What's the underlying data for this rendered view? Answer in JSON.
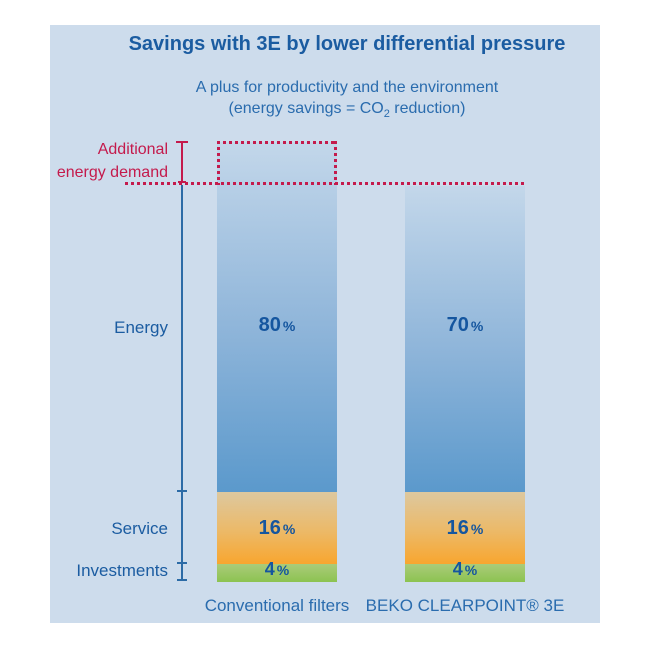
{
  "header": {
    "title": "Savings with 3E by lower differential pressure",
    "subtitle": "A plus for productivity and the environment",
    "co2_prefix": "(energy savings = CO",
    "co2_sub": "2",
    "co2_suffix": " reduction)"
  },
  "annotation": {
    "line1": "Additional",
    "line2": "energy demand"
  },
  "axis_labels": {
    "energy": "Energy",
    "service": "Service",
    "investments": "Investments"
  },
  "unit_percent": "%",
  "bars": [
    {
      "name": "Conventional filters",
      "energy": "80",
      "service": "16",
      "investments": "4"
    },
    {
      "name": "BEKO CLEARPOINT® 3E",
      "energy": "70",
      "service": "16",
      "investments": "4"
    }
  ],
  "colors": {
    "panel_background": "#cddcec",
    "title_blue": "#1b5ca1",
    "subtitle_blue": "#2a6cae",
    "percent_blue": "#15569f",
    "annotation_red": "#c41a4c",
    "axis_blue": "#2c6ba6",
    "energy_gradient_top": "#c3d7ea",
    "energy_gradient_bottom": "#5b99cc",
    "service_gradient_top": "#ddc89f",
    "service_gradient_bottom": "#f8a62f",
    "investments_gradient_top": "#abcb7a",
    "investments_gradient_bottom": "#8cc351"
  },
  "chart_data": {
    "type": "bar",
    "stacked": true,
    "title": "Savings with 3E by lower differential pressure",
    "subtitle": "A plus for productivity and the environment (energy savings = CO2 reduction)",
    "categories": [
      "Conventional filters",
      "BEKO CLEARPOINT® 3E"
    ],
    "series": [
      {
        "name": "Energy",
        "values": [
          80,
          70
        ]
      },
      {
        "name": "Service",
        "values": [
          16,
          16
        ]
      },
      {
        "name": "Investments",
        "values": [
          4,
          4
        ]
      }
    ],
    "unit": "%",
    "totals": [
      100,
      90
    ],
    "annotation": "Additional energy demand: the top 10% of the Conventional filters bar (80% vs 70% energy) is outlined with a red dotted box and dotted reference line",
    "legend_position": "left-axis-labels",
    "grid": false,
    "ylim": [
      0,
      100
    ]
  }
}
